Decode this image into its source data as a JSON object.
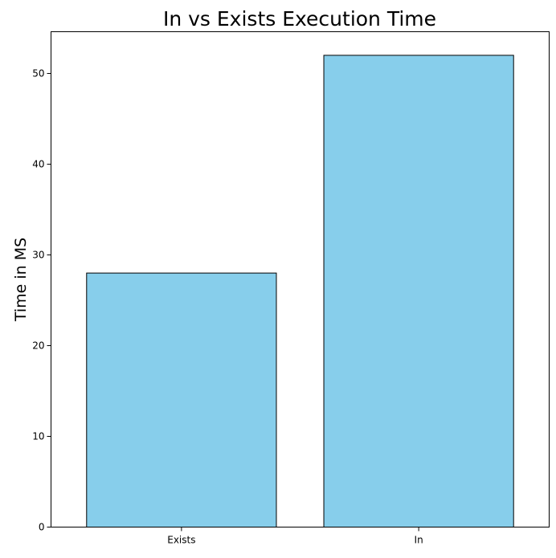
{
  "chart_data": {
    "type": "bar",
    "title": "In vs Exists Execution Time",
    "xlabel": "",
    "ylabel": "Time in MS",
    "categories": [
      "Exists",
      "In"
    ],
    "values": [
      28,
      52
    ],
    "ylim": [
      0,
      54.6
    ],
    "yticks": [
      0,
      10,
      20,
      30,
      40,
      50
    ],
    "ytick_labels": [
      "0",
      "10",
      "20",
      "30",
      "40",
      "50"
    ],
    "grid": false,
    "legend": "none",
    "bar_color": "#87CEEB",
    "bar_edge_color": "#000000"
  }
}
